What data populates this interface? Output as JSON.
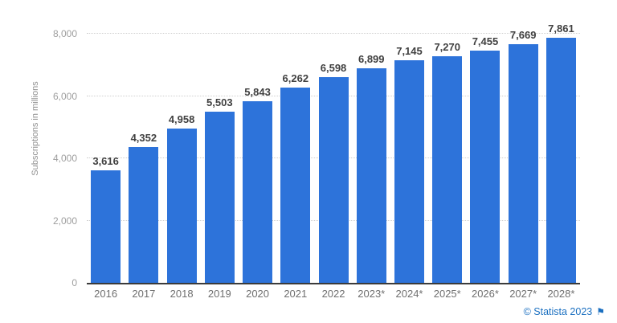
{
  "chart_data": {
    "type": "bar",
    "categories": [
      "2016",
      "2017",
      "2018",
      "2019",
      "2020",
      "2021",
      "2022",
      "2023*",
      "2024*",
      "2025*",
      "2026*",
      "2027*",
      "2028*"
    ],
    "values": [
      3616,
      4352,
      4958,
      5503,
      5843,
      6262,
      6598,
      6899,
      7145,
      7270,
      7455,
      7669,
      7861
    ],
    "value_labels": [
      "3,616",
      "4,352",
      "4,958",
      "5,503",
      "5,843",
      "6,262",
      "6,598",
      "6,899",
      "7,145",
      "7,270",
      "7,455",
      "7,669",
      "7,861"
    ],
    "title": "",
    "xlabel": "",
    "ylabel": "Subscriptions in millions",
    "ylim": [
      0,
      8000
    ],
    "yticks": [
      0,
      2000,
      4000,
      6000,
      8000
    ],
    "ytick_labels": [
      "0",
      "2,000",
      "4,000",
      "6,000",
      "8,000"
    ],
    "grid": "horizontal-dotted",
    "legend": "none",
    "bar_color": "#2d73da"
  },
  "footer": {
    "attribution": "© Statista 2023",
    "flag_icon": "⚑",
    "link_color": "#1a6fc0"
  }
}
